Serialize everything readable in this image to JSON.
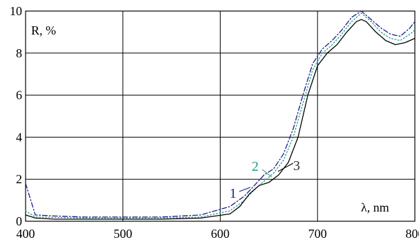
{
  "chart_data": {
    "type": "line",
    "ylabel": "R, %",
    "xlabel": "λ, nm",
    "xlim": [
      400,
      800
    ],
    "ylim": [
      0,
      10
    ],
    "xticks": [
      "400",
      "500",
      "600",
      "700",
      "800"
    ],
    "yticks": [
      "0",
      "2",
      "4",
      "6",
      "8",
      "10"
    ],
    "grid": true,
    "series": [
      {
        "name": "1",
        "color": "#1a1a8c",
        "dash": "dash-dot",
        "x": [
          400,
          410,
          430,
          460,
          500,
          540,
          580,
          610,
          625,
          635,
          645,
          655,
          665,
          675,
          685,
          695,
          705,
          715,
          725,
          735,
          745,
          755,
          765,
          775,
          785,
          795,
          800
        ],
        "y": [
          1.8,
          0.3,
          0.25,
          0.2,
          0.2,
          0.2,
          0.3,
          0.7,
          1.2,
          1.7,
          2.2,
          2.5,
          3.2,
          4.4,
          6.0,
          7.5,
          8.2,
          8.6,
          9.1,
          9.7,
          10.0,
          9.6,
          9.2,
          8.9,
          8.8,
          9.2,
          9.5
        ]
      },
      {
        "name": "2",
        "color": "#1a9e80",
        "dash": "dotted",
        "x": [
          400,
          410,
          430,
          460,
          500,
          540,
          580,
          610,
          625,
          635,
          645,
          655,
          665,
          675,
          685,
          695,
          705,
          715,
          725,
          735,
          745,
          755,
          765,
          775,
          785,
          795,
          800
        ],
        "y": [
          0.5,
          0.2,
          0.18,
          0.15,
          0.15,
          0.15,
          0.2,
          0.5,
          1.0,
          1.5,
          1.9,
          2.3,
          2.9,
          4.0,
          5.6,
          7.2,
          8.0,
          8.4,
          8.9,
          9.5,
          9.9,
          9.5,
          9.0,
          8.7,
          8.6,
          8.9,
          9.1
        ]
      },
      {
        "name": "3",
        "color": "#000000",
        "dash": "solid",
        "x": [
          400,
          410,
          430,
          460,
          500,
          540,
          580,
          610,
          620,
          630,
          640,
          650,
          660,
          670,
          680,
          690,
          700,
          710,
          720,
          730,
          740,
          745,
          750,
          760,
          770,
          780,
          790,
          800
        ],
        "y": [
          0.3,
          0.15,
          0.1,
          0.1,
          0.1,
          0.1,
          0.15,
          0.35,
          0.7,
          1.3,
          1.7,
          1.85,
          2.2,
          2.8,
          4.0,
          6.0,
          7.4,
          8.0,
          8.4,
          9.0,
          9.5,
          9.6,
          9.5,
          9.0,
          8.6,
          8.4,
          8.5,
          8.7
        ]
      }
    ]
  }
}
